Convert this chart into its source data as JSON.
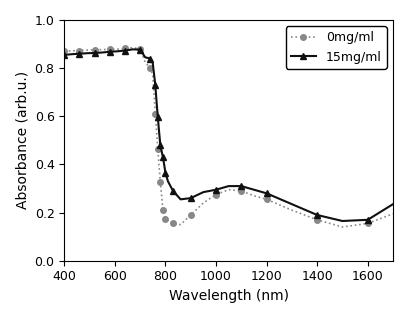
{
  "title": "",
  "xlabel": "Wavelength (nm)",
  "ylabel": "Absorbance (arb.u.)",
  "xlim": [
    400,
    1700
  ],
  "ylim": [
    0.0,
    1.0
  ],
  "xticks": [
    400,
    600,
    800,
    1000,
    1200,
    1400,
    1600
  ],
  "yticks": [
    0.0,
    0.2,
    0.4,
    0.6,
    0.8,
    1.0
  ],
  "series": [
    {
      "label": "0mg/ml",
      "color": "#888888",
      "linestyle": "dotted",
      "marker": "o",
      "markersize": 4,
      "linewidth": 1.2,
      "x": [
        400,
        430,
        460,
        490,
        520,
        550,
        580,
        610,
        640,
        670,
        700,
        720,
        740,
        750,
        760,
        765,
        770,
        775,
        780,
        785,
        790,
        795,
        800,
        810,
        830,
        860,
        900,
        950,
        1000,
        1050,
        1100,
        1150,
        1200,
        1300,
        1400,
        1500,
        1600,
        1700
      ],
      "y": [
        0.87,
        0.872,
        0.873,
        0.875,
        0.876,
        0.877,
        0.878,
        0.879,
        0.882,
        0.885,
        0.88,
        0.825,
        0.8,
        0.77,
        0.61,
        0.54,
        0.465,
        0.39,
        0.325,
        0.27,
        0.21,
        0.19,
        0.175,
        0.165,
        0.155,
        0.15,
        0.19,
        0.24,
        0.275,
        0.295,
        0.29,
        0.27,
        0.255,
        0.21,
        0.17,
        0.14,
        0.155,
        0.195
      ]
    },
    {
      "label": "15mg/ml",
      "color": "#111111",
      "linestyle": "solid",
      "marker": "^",
      "markersize": 4,
      "linewidth": 1.5,
      "x": [
        400,
        430,
        460,
        490,
        520,
        550,
        580,
        610,
        640,
        670,
        700,
        720,
        740,
        750,
        760,
        765,
        770,
        775,
        780,
        785,
        790,
        795,
        800,
        810,
        830,
        860,
        900,
        950,
        1000,
        1050,
        1100,
        1150,
        1200,
        1300,
        1400,
        1500,
        1600,
        1700
      ],
      "y": [
        0.855,
        0.858,
        0.86,
        0.862,
        0.863,
        0.865,
        0.868,
        0.87,
        0.873,
        0.878,
        0.877,
        0.845,
        0.84,
        0.82,
        0.73,
        0.66,
        0.595,
        0.535,
        0.48,
        0.455,
        0.43,
        0.4,
        0.365,
        0.33,
        0.29,
        0.255,
        0.26,
        0.285,
        0.295,
        0.31,
        0.31,
        0.295,
        0.28,
        0.235,
        0.19,
        0.165,
        0.17,
        0.235
      ]
    }
  ],
  "legend_loc": "upper right",
  "legend_fontsize": 9,
  "axis_fontsize": 10,
  "tick_fontsize": 9,
  "background_color": "#ffffff",
  "marker_every_0": 2,
  "marker_every_1": 2
}
